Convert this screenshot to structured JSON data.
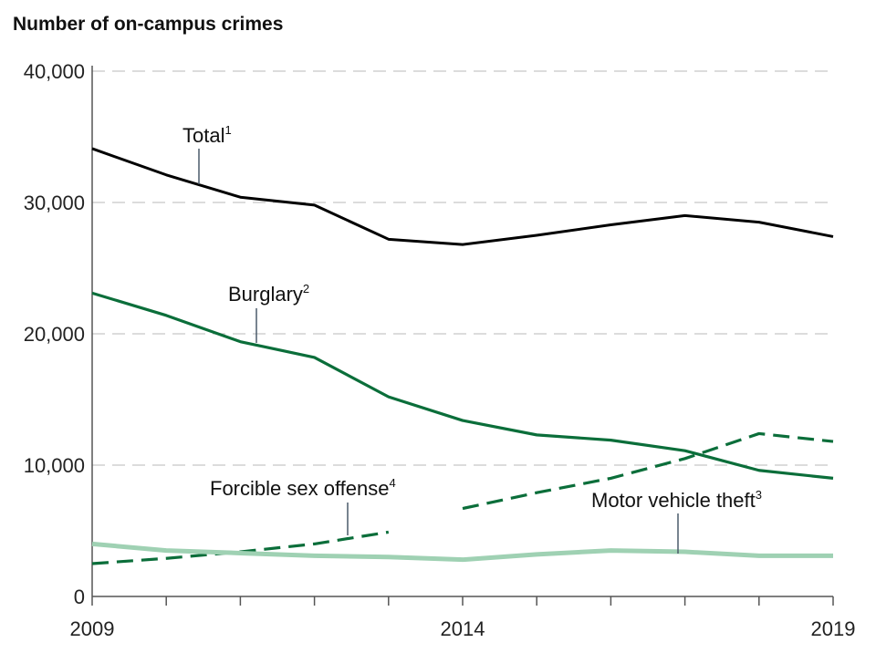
{
  "chart_data": {
    "type": "line",
    "title": "Number of on-campus crimes",
    "xlabel": "",
    "ylabel": "",
    "x": [
      2009,
      2010,
      2011,
      2012,
      2013,
      2014,
      2015,
      2016,
      2017,
      2018,
      2019
    ],
    "x_tick_labels": [
      "2009",
      "2014",
      "2019"
    ],
    "y_tick_labels": [
      "0",
      "10,000",
      "20,000",
      "30,000",
      "40,000"
    ],
    "ylim": [
      0,
      40000
    ],
    "xlim": [
      2009,
      2019
    ],
    "grid": "horizontal dashed",
    "series": [
      {
        "name": "Total",
        "footnote": "1",
        "color": "#000000",
        "style": "solid",
        "values": [
          34100,
          32100,
          30400,
          29800,
          27200,
          26800,
          27500,
          28300,
          29000,
          28500,
          27400
        ]
      },
      {
        "name": "Burglary",
        "footnote": "2",
        "color": "#0b6e3a",
        "style": "solid",
        "values": [
          23100,
          21400,
          19400,
          18200,
          15200,
          13400,
          12300,
          11900,
          11100,
          9600,
          9000
        ]
      },
      {
        "name": "Forcible sex offense",
        "footnote": "4",
        "color": "#0b6e3a",
        "style": "dashed",
        "values": [
          2500,
          2900,
          3400,
          4000,
          4900,
          6700,
          7900,
          9000,
          10500,
          12400,
          11800
        ],
        "break_between": [
          2013,
          2014
        ]
      },
      {
        "name": "Motor vehicle theft",
        "footnote": "3",
        "color": "#9fd1b3",
        "style": "solid",
        "values": [
          4000,
          3500,
          3300,
          3100,
          3000,
          2800,
          3200,
          3500,
          3400,
          3100,
          3100
        ]
      }
    ]
  }
}
